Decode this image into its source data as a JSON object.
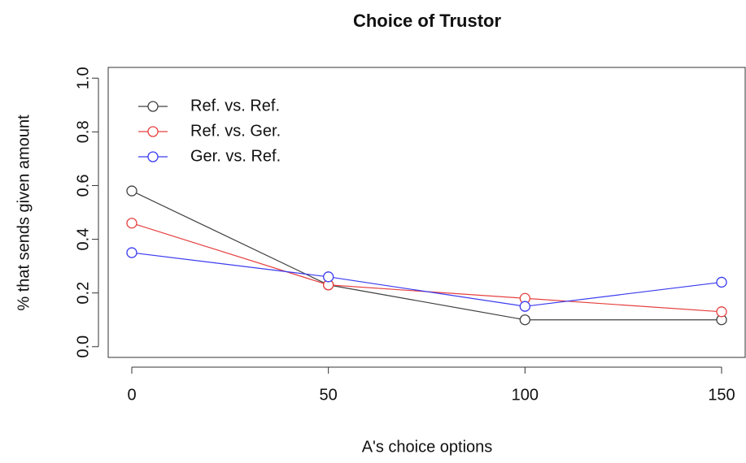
{
  "chart_data": {
    "type": "line",
    "title": "Choice of Trustor",
    "x_label": "A's choice options",
    "y_label": "% that sends given amount",
    "x": [
      0,
      50,
      100,
      150
    ],
    "series": [
      {
        "name": "Ref. vs. Ref.",
        "color": "#404040",
        "values": [
          0.58,
          0.23,
          0.1,
          0.1
        ]
      },
      {
        "name": "Ref. vs. Ger.",
        "color": "#e64040",
        "values": [
          0.46,
          0.23,
          0.18,
          0.13
        ]
      },
      {
        "name": "Ger. vs. Ref.",
        "color": "#3a3af0",
        "values": [
          0.35,
          0.26,
          0.15,
          0.24
        ]
      }
    ],
    "xlim": [
      -6,
      156
    ],
    "ylim": [
      -0.04,
      1.04
    ],
    "xticks": [
      0,
      50,
      100,
      150
    ],
    "yticks": [
      {
        "value": 0,
        "label": "0.0"
      },
      0.2,
      0.4,
      0.6,
      0.8,
      {
        "value": 1,
        "label": "1.0"
      }
    ],
    "legend": "top-left"
  }
}
